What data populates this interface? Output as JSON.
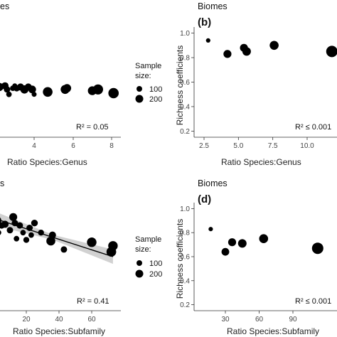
{
  "panels": {
    "a": {
      "title_suffix": "es"
    },
    "b": {
      "title": "Biomes",
      "letter": "(b)",
      "ylabel": "Richness coefficients",
      "r2": "R² ≤ 0.001"
    },
    "a2": {
      "r2": "R² = 0.05",
      "xlabel": "Ratio Species:Genus"
    },
    "c": {
      "title_suffix": "s",
      "r2": "R² = 0.41",
      "xlabel": "Ratio Species:Subfamily"
    },
    "d": {
      "title": "Biomes",
      "letter": "(d)",
      "ylabel": "Richness coefficients",
      "r2": "R² ≤ 0.001",
      "xlabel": "Ratio Species:Subfamily"
    }
  },
  "legend": {
    "title_line1": "Sample",
    "title_line2": "size:",
    "items": [
      "100",
      "200"
    ]
  },
  "chart_data": [
    {
      "type": "scatter",
      "panel": "a (partially visible)",
      "title": "",
      "xlabel": "Ratio Species:Genus",
      "ylabel": "",
      "xticks": [
        "4",
        "6",
        "8"
      ],
      "annotation": "R² = 0.05",
      "points": [
        {
          "x": 2.2,
          "y": 0.56,
          "size": 120
        },
        {
          "x": 2.5,
          "y": 0.57,
          "size": 80
        },
        {
          "x": 2.6,
          "y": 0.54,
          "size": 60
        },
        {
          "x": 2.9,
          "y": 0.55,
          "size": 40
        },
        {
          "x": 3.0,
          "y": 0.57,
          "size": 30
        },
        {
          "x": 3.1,
          "y": 0.55,
          "size": 60
        },
        {
          "x": 3.3,
          "y": 0.56,
          "size": 80
        },
        {
          "x": 3.5,
          "y": 0.54,
          "size": 120
        },
        {
          "x": 3.7,
          "y": 0.56,
          "size": 80
        },
        {
          "x": 3.9,
          "y": 0.54,
          "size": 100
        },
        {
          "x": 2.7,
          "y": 0.5,
          "size": 40
        },
        {
          "x": 4.0,
          "y": 0.5,
          "size": 30
        },
        {
          "x": 4.7,
          "y": 0.52,
          "size": 180
        },
        {
          "x": 5.6,
          "y": 0.54,
          "size": 150
        },
        {
          "x": 5.7,
          "y": 0.55,
          "size": 120
        },
        {
          "x": 7.0,
          "y": 0.53,
          "size": 140
        },
        {
          "x": 7.3,
          "y": 0.54,
          "size": 200
        },
        {
          "x": 8.1,
          "y": 0.51,
          "size": 210
        }
      ]
    },
    {
      "type": "scatter",
      "panel": "b",
      "title": "Biomes",
      "xlabel": "Ratio Species:Genus",
      "ylabel": "Richness coefficients",
      "xticks": [
        "2.5",
        "5.0",
        "7.5",
        "10.0"
      ],
      "yticks": [
        "0.2",
        "0.4",
        "0.6",
        "0.8",
        "1.0"
      ],
      "ylim": [
        0.15,
        1.05
      ],
      "annotation": "R² ≤ 0.001",
      "points": [
        {
          "x": 2.8,
          "y": 0.94,
          "size": 20
        },
        {
          "x": 4.2,
          "y": 0.83,
          "size": 110
        },
        {
          "x": 5.4,
          "y": 0.88,
          "size": 110
        },
        {
          "x": 5.6,
          "y": 0.85,
          "size": 130
        },
        {
          "x": 7.6,
          "y": 0.9,
          "size": 150
        },
        {
          "x": 11.8,
          "y": 0.85,
          "size": 260
        }
      ]
    },
    {
      "type": "scatter",
      "panel": "c (partially visible)",
      "title": "",
      "xlabel": "Ratio Species:Subfamily",
      "ylabel": "",
      "xticks": [
        "20",
        "40",
        "60"
      ],
      "annotation": "R² = 0.41",
      "regression": {
        "x": [
          0,
          73
        ],
        "y": [
          0.92,
          0.6
        ],
        "ci_half_width_at_ends": 0.06
      },
      "points": [
        {
          "x": 2,
          "y": 0.9,
          "size": 150
        },
        {
          "x": 3,
          "y": 0.8,
          "size": 40
        },
        {
          "x": 5,
          "y": 0.86,
          "size": 60
        },
        {
          "x": 7,
          "y": 0.87,
          "size": 80
        },
        {
          "x": 10,
          "y": 0.82,
          "size": 60
        },
        {
          "x": 12,
          "y": 0.93,
          "size": 110
        },
        {
          "x": 13,
          "y": 0.88,
          "size": 60
        },
        {
          "x": 14,
          "y": 0.75,
          "size": 40
        },
        {
          "x": 16,
          "y": 0.86,
          "size": 60
        },
        {
          "x": 18,
          "y": 0.8,
          "size": 40
        },
        {
          "x": 20,
          "y": 0.74,
          "size": 50
        },
        {
          "x": 22,
          "y": 0.84,
          "size": 60
        },
        {
          "x": 23,
          "y": 0.78,
          "size": 40
        },
        {
          "x": 25,
          "y": 0.88,
          "size": 70
        },
        {
          "x": 29,
          "y": 0.8,
          "size": 50
        },
        {
          "x": 35,
          "y": 0.73,
          "size": 150
        },
        {
          "x": 36,
          "y": 0.78,
          "size": 80
        },
        {
          "x": 43,
          "y": 0.66,
          "size": 60
        },
        {
          "x": 60,
          "y": 0.72,
          "size": 170
        },
        {
          "x": 72,
          "y": 0.64,
          "size": 180
        },
        {
          "x": 73,
          "y": 0.69,
          "size": 170
        }
      ]
    },
    {
      "type": "scatter",
      "panel": "d",
      "title": "Biomes",
      "xlabel": "Ratio Species:Subfamily",
      "ylabel": "Richness coefficients",
      "xticks": [
        "30",
        "60",
        "90"
      ],
      "yticks": [
        "0.2",
        "0.4",
        "0.6",
        "0.8",
        "1.0"
      ],
      "ylim": [
        0.15,
        1.05
      ],
      "annotation": "R² ≤ 0.001",
      "points": [
        {
          "x": 17,
          "y": 0.83,
          "size": 20
        },
        {
          "x": 30,
          "y": 0.64,
          "size": 100
        },
        {
          "x": 36,
          "y": 0.72,
          "size": 110
        },
        {
          "x": 45,
          "y": 0.71,
          "size": 130
        },
        {
          "x": 64,
          "y": 0.75,
          "size": 150
        },
        {
          "x": 112,
          "y": 0.67,
          "size": 260
        }
      ]
    }
  ]
}
